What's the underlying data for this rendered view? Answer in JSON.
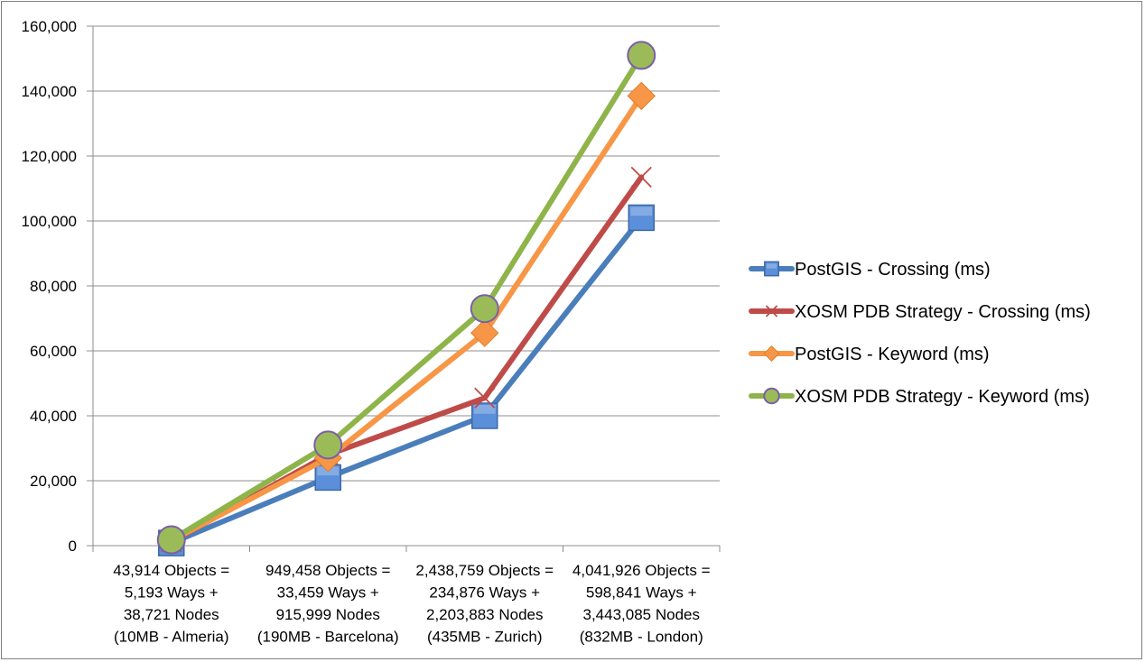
{
  "chart_data": {
    "type": "line",
    "categories": [
      [
        "43,914 Objects =",
        "5,193 Ways +",
        "38,721 Nodes",
        "(10MB - Almeria)"
      ],
      [
        "949,458 Objects =",
        "33,459 Ways +",
        "915,999 Nodes",
        "(190MB - Barcelona)"
      ],
      [
        "2,438,759 Objects =",
        "234,876 Ways +",
        "2,203,883 Nodes",
        "(435MB - Zurich)"
      ],
      [
        "4,041,926 Objects =",
        "598,841 Ways +",
        "3,443,085 Nodes",
        "(832MB - London)"
      ]
    ],
    "ylim": [
      0,
      160000
    ],
    "yticks": [
      0,
      20000,
      40000,
      60000,
      80000,
      100000,
      120000,
      140000,
      160000
    ],
    "ytick_labels": [
      "0",
      "20,000",
      "40,000",
      "60,000",
      "80,000",
      "100,000",
      "120,000",
      "140,000",
      "160,000"
    ],
    "grid": true,
    "legend_position": "right",
    "series": [
      {
        "name": "PostGIS - Crossing (ms)",
        "values": [
          800,
          21000,
          40000,
          101000
        ],
        "color": "#4a7ebb",
        "marker": "square",
        "marker_fill": "#5b8fd9"
      },
      {
        "name": "XOSM PDB Strategy - Crossing (ms)",
        "values": [
          1200,
          28000,
          45500,
          113500
        ],
        "color": "#be4b48",
        "marker": "x",
        "marker_fill": "#be4b48"
      },
      {
        "name": "PostGIS - Keyword (ms)",
        "values": [
          1500,
          27000,
          65500,
          138500
        ],
        "color": "#f79646",
        "marker": "diamond",
        "marker_fill": "#f79646"
      },
      {
        "name": "XOSM PDB Strategy - Keyword (ms)",
        "values": [
          1800,
          31000,
          73000,
          151000
        ],
        "color": "#8eb44a",
        "marker": "circle",
        "marker_fill": "#9bbb59"
      }
    ]
  }
}
